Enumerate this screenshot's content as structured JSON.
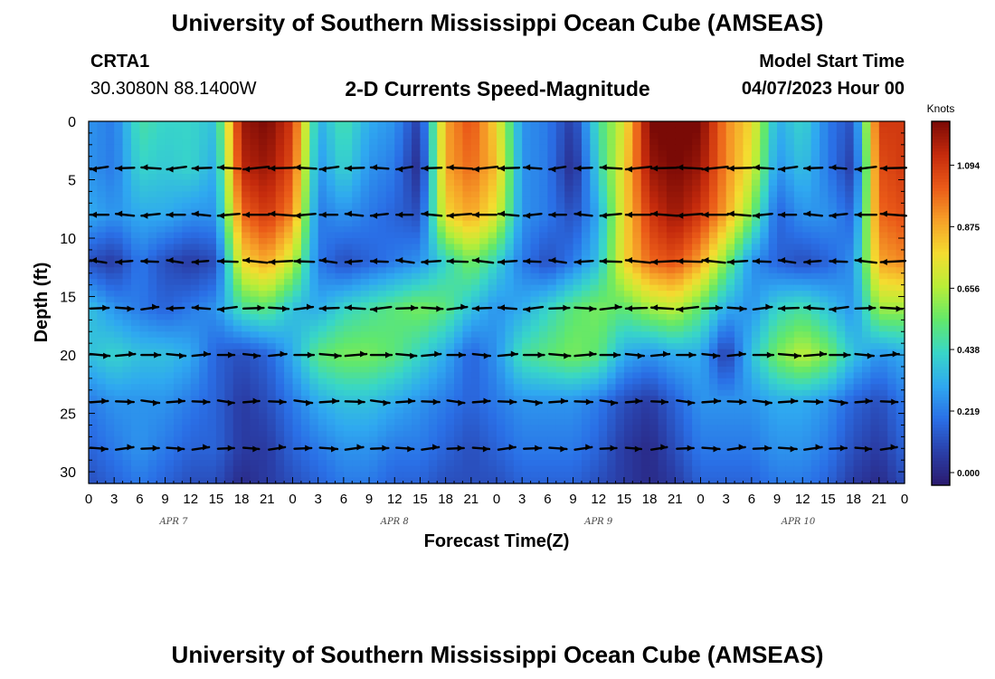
{
  "page": {
    "title": "University of Southern Mississippi Ocean Cube (AMSEAS)",
    "footer_title": "University of Southern Mississippi Ocean Cube (AMSEAS)"
  },
  "station": {
    "id": "CRTA1",
    "coords": "30.3080N  88.1400W"
  },
  "model": {
    "label": "Model Start Time",
    "time": "04/07/2023 Hour 00"
  },
  "chart_data": {
    "type": "heatmap",
    "title": "2-D Currents Speed-Magnitude",
    "xlabel": "Forecast Time(Z)",
    "ylabel": "Depth (ft)",
    "x_range_hours": [
      0,
      96
    ],
    "ylim": [
      0,
      31
    ],
    "y_ticks": [
      0,
      5,
      10,
      15,
      20,
      25,
      30
    ],
    "x_tick_labels": [
      "0",
      "3",
      "6",
      "9",
      "12",
      "15",
      "18",
      "21",
      "0",
      "3",
      "6",
      "9",
      "12",
      "15",
      "18",
      "21",
      "0",
      "3",
      "6",
      "9",
      "12",
      "15",
      "18",
      "21",
      "0",
      "3",
      "6",
      "9",
      "12",
      "15",
      "18",
      "21",
      "0"
    ],
    "date_labels": [
      {
        "text": "APR 7",
        "hour": 10
      },
      {
        "text": "APR 8",
        "hour": 36
      },
      {
        "text": "APR 9",
        "hour": 60
      },
      {
        "text": "APR 10",
        "hour": 83.5
      }
    ],
    "colorbar": {
      "unit": "Knots",
      "min": 0,
      "max": 1.25,
      "ticks": [
        0.0,
        0.219,
        0.438,
        0.656,
        0.875,
        1.094
      ],
      "tick_labels": [
        "0.000",
        "0.219",
        "0.438",
        "0.656",
        "0.875",
        "1.094"
      ],
      "colors": [
        "#2b1a6e",
        "#2a3fa8",
        "#2a6fe6",
        "#2fa8f0",
        "#38d6c8",
        "#62e86a",
        "#b8ee38",
        "#f4dc30",
        "#f6a028",
        "#ea5a18",
        "#c42a0c",
        "#7a0a06"
      ]
    },
    "speed_field": {
      "depths_ft": [
        0,
        4,
        8,
        12,
        16,
        20,
        24,
        28,
        31
      ],
      "hours": [
        0,
        3,
        6,
        9,
        12,
        15,
        18,
        21,
        24,
        27,
        30,
        33,
        36,
        39,
        42,
        45,
        48,
        51,
        54,
        57,
        60,
        63,
        66,
        69,
        72,
        75,
        78,
        81,
        84,
        87,
        90,
        93,
        96
      ],
      "values": [
        [
          0.3,
          0.25,
          0.5,
          0.45,
          0.45,
          0.4,
          1.2,
          1.25,
          1.1,
          0.35,
          0.5,
          0.35,
          0.3,
          0.1,
          0.9,
          1.05,
          0.8,
          0.3,
          0.25,
          0.1,
          0.5,
          0.75,
          1.25,
          1.3,
          1.25,
          0.95,
          0.8,
          0.35,
          0.45,
          0.25,
          0.15,
          1.1,
          1.1
        ],
        [
          0.3,
          0.25,
          0.45,
          0.42,
          0.45,
          0.35,
          1.15,
          1.2,
          1.05,
          0.3,
          0.45,
          0.3,
          0.25,
          0.05,
          0.9,
          1.0,
          0.85,
          0.3,
          0.25,
          0.05,
          0.45,
          0.8,
          1.2,
          1.25,
          1.2,
          0.95,
          0.75,
          0.3,
          0.4,
          0.25,
          0.1,
          1.05,
          1.1
        ],
        [
          0.35,
          0.3,
          0.35,
          0.35,
          0.3,
          0.3,
          1.0,
          1.1,
          0.95,
          0.25,
          0.3,
          0.25,
          0.2,
          0.15,
          0.8,
          0.9,
          0.75,
          0.3,
          0.25,
          0.15,
          0.35,
          0.8,
          1.1,
          1.2,
          1.1,
          0.9,
          0.6,
          0.2,
          0.3,
          0.3,
          0.2,
          1.0,
          1.05
        ],
        [
          0.15,
          0.1,
          0.25,
          0.15,
          0.1,
          0.15,
          0.8,
          0.9,
          0.7,
          0.25,
          0.15,
          0.2,
          0.25,
          0.3,
          0.45,
          0.6,
          0.45,
          0.25,
          0.15,
          0.25,
          0.4,
          0.8,
          1.0,
          1.05,
          0.9,
          0.6,
          0.3,
          0.2,
          0.15,
          0.2,
          0.3,
          0.9,
          0.95
        ],
        [
          0.4,
          0.3,
          0.25,
          0.2,
          0.25,
          0.3,
          0.5,
          0.55,
          0.4,
          0.35,
          0.45,
          0.5,
          0.55,
          0.6,
          0.55,
          0.4,
          0.3,
          0.35,
          0.45,
          0.55,
          0.6,
          0.55,
          0.65,
          0.7,
          0.55,
          0.35,
          0.3,
          0.45,
          0.5,
          0.4,
          0.3,
          0.65,
          0.65
        ],
        [
          0.4,
          0.45,
          0.4,
          0.4,
          0.35,
          0.2,
          0.15,
          0.2,
          0.35,
          0.55,
          0.6,
          0.6,
          0.55,
          0.45,
          0.35,
          0.2,
          0.3,
          0.5,
          0.55,
          0.6,
          0.55,
          0.35,
          0.3,
          0.35,
          0.35,
          0.1,
          0.4,
          0.6,
          0.7,
          0.6,
          0.4,
          0.3,
          0.35
        ],
        [
          0.25,
          0.3,
          0.3,
          0.3,
          0.25,
          0.2,
          0.1,
          0.15,
          0.25,
          0.35,
          0.4,
          0.4,
          0.35,
          0.3,
          0.25,
          0.2,
          0.25,
          0.3,
          0.3,
          0.3,
          0.25,
          0.15,
          0.1,
          0.2,
          0.3,
          0.3,
          0.3,
          0.35,
          0.35,
          0.3,
          0.2,
          0.15,
          0.25
        ],
        [
          0.2,
          0.25,
          0.3,
          0.25,
          0.2,
          0.2,
          0.1,
          0.1,
          0.2,
          0.25,
          0.3,
          0.3,
          0.25,
          0.25,
          0.2,
          0.15,
          0.2,
          0.25,
          0.25,
          0.25,
          0.2,
          0.1,
          0.05,
          0.15,
          0.25,
          0.25,
          0.25,
          0.3,
          0.3,
          0.25,
          0.15,
          0.1,
          0.2
        ],
        [
          0.15,
          0.2,
          0.25,
          0.2,
          0.15,
          0.15,
          0.05,
          0.1,
          0.15,
          0.2,
          0.25,
          0.25,
          0.2,
          0.2,
          0.15,
          0.15,
          0.15,
          0.2,
          0.2,
          0.2,
          0.15,
          0.1,
          0.05,
          0.1,
          0.2,
          0.2,
          0.2,
          0.25,
          0.25,
          0.2,
          0.1,
          0.05,
          0.15
        ]
      ]
    },
    "vector_rows_ft": [
      4,
      8,
      12,
      16,
      20,
      24,
      28
    ],
    "vector_directions": {
      "4": "west",
      "8": "west",
      "12": "west",
      "16": "mixed",
      "20": "east",
      "24": "east",
      "28": "east"
    }
  }
}
